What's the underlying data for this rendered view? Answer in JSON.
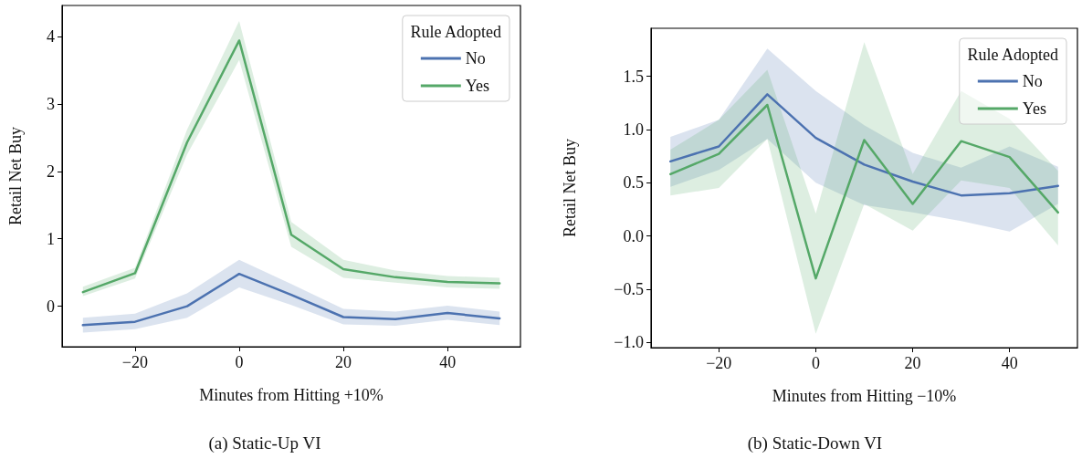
{
  "chart_data": [
    {
      "type": "line",
      "xlabel": "Minutes from Hitting +10%",
      "ylabel": "Retail Net Buy",
      "legend_title": "Rule Adopted",
      "legend": "top right",
      "marker": "none",
      "line_style": "solid",
      "x": [
        -30,
        -20,
        -10,
        0,
        10,
        20,
        30,
        40,
        50
      ],
      "xlim": [
        -34,
        54
      ],
      "xticks": [
        {
          "value": -20,
          "label": "−20"
        },
        0,
        20,
        40
      ],
      "ylim": [
        -0.6,
        4.46
      ],
      "yticks": [
        0,
        1,
        2,
        3,
        4
      ],
      "series": [
        {
          "name": "No",
          "color": "#4c72b0",
          "values": [
            -0.28,
            -0.23,
            0.0,
            0.48,
            0.17,
            -0.16,
            -0.19,
            -0.1,
            -0.18
          ],
          "lower": [
            -0.39,
            -0.34,
            -0.17,
            0.28,
            0.02,
            -0.27,
            -0.29,
            -0.2,
            -0.28
          ],
          "upper": [
            -0.17,
            -0.11,
            0.19,
            0.69,
            0.33,
            -0.04,
            -0.08,
            0.01,
            -0.08
          ]
        },
        {
          "name": "Yes",
          "color": "#55a868",
          "values": [
            0.21,
            0.49,
            2.43,
            3.94,
            1.06,
            0.55,
            0.43,
            0.36,
            0.34
          ],
          "lower": [
            0.15,
            0.41,
            2.25,
            3.65,
            0.88,
            0.42,
            0.35,
            0.28,
            0.26
          ],
          "upper": [
            0.29,
            0.57,
            2.62,
            4.23,
            1.25,
            0.69,
            0.53,
            0.45,
            0.42
          ]
        }
      ],
      "annotations": [
        "(a) Static-Up VI"
      ]
    },
    {
      "type": "line",
      "xlabel": "Minutes from Hitting −10%",
      "ylabel": "Retail Net Buy",
      "legend_title": "Rule Adopted",
      "legend": "top right",
      "marker": "none",
      "line_style": "solid",
      "x": [
        -30,
        -20,
        -10,
        0,
        10,
        20,
        30,
        40,
        50
      ],
      "xlim": [
        -34,
        54
      ],
      "xticks": [
        {
          "value": -20,
          "label": "−20"
        },
        0,
        20,
        40
      ],
      "ylim": [
        -1.05,
        1.95
      ],
      "yticks": [
        {
          "value": -1,
          "label": "−1.0"
        },
        {
          "value": -0.5,
          "label": "−0.5"
        },
        {
          "value": 0,
          "label": "0.0"
        },
        0.5,
        {
          "value": 1,
          "label": "1.0"
        },
        1.5
      ],
      "series": [
        {
          "name": "No",
          "color": "#4c72b0",
          "values": [
            0.7,
            0.84,
            1.33,
            0.92,
            0.67,
            0.51,
            0.38,
            0.4,
            0.47
          ],
          "lower": [
            0.46,
            0.62,
            0.91,
            0.5,
            0.29,
            0.22,
            0.14,
            0.04,
            0.3
          ],
          "upper": [
            0.93,
            1.09,
            1.76,
            1.36,
            1.04,
            0.78,
            0.64,
            0.84,
            0.65
          ]
        },
        {
          "name": "Yes",
          "color": "#55a868",
          "values": [
            0.58,
            0.77,
            1.23,
            -0.4,
            0.9,
            0.3,
            0.89,
            0.74,
            0.22
          ],
          "lower": [
            0.38,
            0.45,
            0.91,
            -0.92,
            0.3,
            0.05,
            0.52,
            0.45,
            -0.09
          ],
          "upper": [
            0.81,
            1.09,
            1.56,
            0.21,
            1.82,
            0.58,
            1.36,
            1.1,
            0.61
          ]
        }
      ],
      "annotations": [
        "(b) Static-Down VI"
      ]
    }
  ]
}
